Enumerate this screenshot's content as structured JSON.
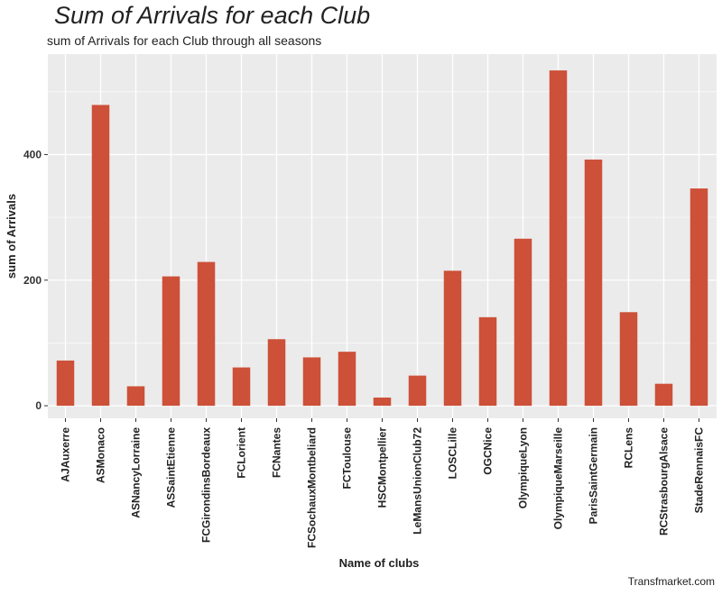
{
  "title": "Sum of Arrivals for each Club",
  "subtitle": "sum of Arrivals for each Club through all seasons",
  "caption": "Transfmarket.com",
  "colors": {
    "bar": "#cd5039",
    "panel": "#ebebeb",
    "grid": "#ffffff"
  },
  "chart_data": {
    "type": "bar",
    "title": "Sum of Arrivals for each Club",
    "subtitle": "sum of Arrivals for each Club through all seasons",
    "xlabel": "Name of clubs",
    "ylabel": "sum of Arrivals",
    "ylim": [
      -20,
      560
    ],
    "yticks": [
      0,
      200,
      400
    ],
    "grid": true,
    "categories": [
      "AJAuxerre",
      "ASMonaco",
      "ASNancyLorraine",
      "ASSaintEtienne",
      "FCGirondinsBordeaux",
      "FCLorient",
      "FCNantes",
      "FCSochauxMontbeliard",
      "FCToulouse",
      "HSCMontpellier",
      "LeMansUnionClub72",
      "LOSCLille",
      "OGCNice",
      "OlympiqueLyon",
      "OlympiqueMarseille",
      "ParisSaintGermain",
      "RCLens",
      "RCStrasbourgAlsace",
      "StadeRennaisFC"
    ],
    "values": [
      72,
      479,
      31,
      206,
      229,
      61,
      106,
      77,
      86,
      13,
      48,
      215,
      141,
      266,
      534,
      392,
      149,
      35,
      346
    ]
  }
}
